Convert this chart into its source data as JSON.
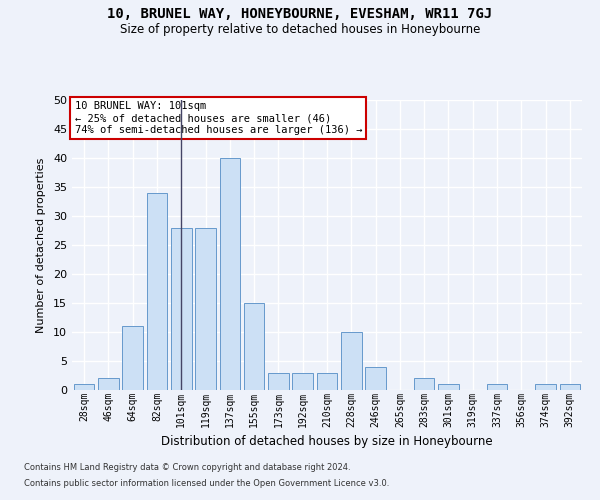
{
  "title": "10, BRUNEL WAY, HONEYBOURNE, EVESHAM, WR11 7GJ",
  "subtitle": "Size of property relative to detached houses in Honeybourne",
  "xlabel": "Distribution of detached houses by size in Honeybourne",
  "ylabel": "Number of detached properties",
  "bar_labels": [
    "28sqm",
    "46sqm",
    "64sqm",
    "82sqm",
    "101sqm",
    "119sqm",
    "137sqm",
    "155sqm",
    "173sqm",
    "192sqm",
    "210sqm",
    "228sqm",
    "246sqm",
    "265sqm",
    "283sqm",
    "301sqm",
    "319sqm",
    "337sqm",
    "356sqm",
    "374sqm",
    "392sqm"
  ],
  "bar_values": [
    1,
    2,
    11,
    34,
    28,
    28,
    40,
    15,
    3,
    3,
    3,
    10,
    4,
    0,
    2,
    1,
    0,
    1,
    0,
    1,
    1
  ],
  "bar_color": "#cce0f5",
  "bar_edge_color": "#6699cc",
  "highlight_index": 4,
  "highlight_line_color": "#444466",
  "ylim": [
    0,
    50
  ],
  "yticks": [
    0,
    5,
    10,
    15,
    20,
    25,
    30,
    35,
    40,
    45,
    50
  ],
  "annotation_text": "10 BRUNEL WAY: 101sqm\n← 25% of detached houses are smaller (46)\n74% of semi-detached houses are larger (136) →",
  "annotation_box_color": "#ffffff",
  "annotation_box_edge": "#cc0000",
  "bg_color": "#eef2fa",
  "footer1": "Contains HM Land Registry data © Crown copyright and database right 2024.",
  "footer2": "Contains public sector information licensed under the Open Government Licence v3.0."
}
